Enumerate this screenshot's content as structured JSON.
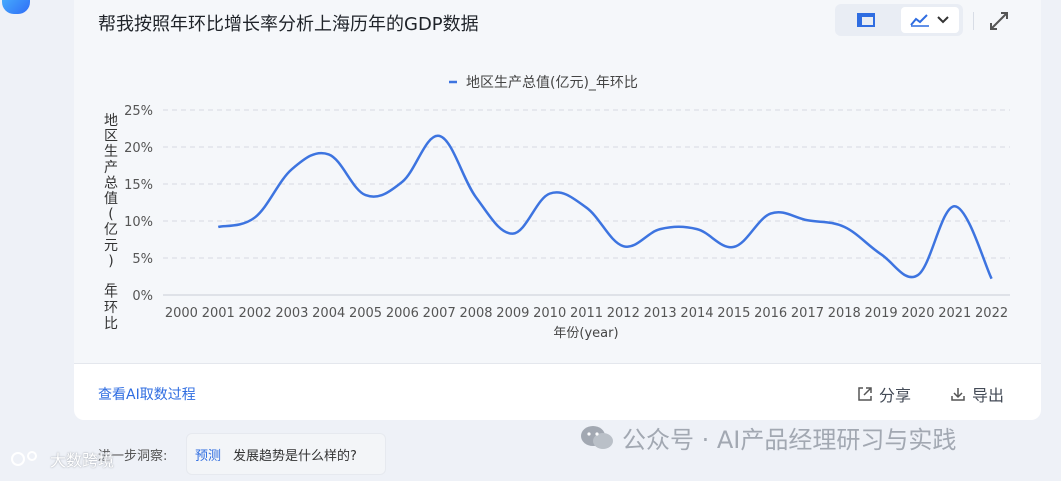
{
  "header": {
    "title": "帮我按照年环比增长率分析上海历年的GDP数据"
  },
  "toolbar": {
    "table_icon": "table-icon",
    "chart_icon": "line-chart-icon",
    "dropdown_icon": "chevron-down-icon",
    "expand_icon": "expand-icon"
  },
  "footer": {
    "process_link": "查看AI取数过程",
    "share_label": "分享",
    "export_label": "导出",
    "insight_label": "进一步洞察:",
    "chip_tag": "预测",
    "chip_text": "发展趋势是什么样的?"
  },
  "watermarks": {
    "left": "大数跨境",
    "right": "公众号 · AI产品经理研习与实践"
  },
  "colors": {
    "series": "#3d74e0",
    "accent": "#2f6de1"
  },
  "chart_data": {
    "type": "line",
    "legend_position": "top-center",
    "grid": true,
    "xlabel": "年份(year)",
    "ylabel": "地区生产总值(亿元)_年环比",
    "ylim": [
      0,
      25
    ],
    "yticks": [
      "0%",
      "5%",
      "10%",
      "15%",
      "20%",
      "25%"
    ],
    "categories": [
      "2000",
      "2001",
      "2002",
      "2003",
      "2004",
      "2005",
      "2006",
      "2007",
      "2008",
      "2009",
      "2010",
      "2011",
      "2012",
      "2013",
      "2014",
      "2015",
      "2016",
      "2017",
      "2018",
      "2019",
      "2020",
      "2021",
      "2022"
    ],
    "series": [
      {
        "name": "地区生产总值(亿元)_年环比",
        "values": [
          null,
          9.2,
          10.5,
          17.0,
          19.0,
          13.5,
          15.3,
          21.5,
          13.2,
          8.3,
          13.7,
          11.8,
          6.6,
          8.9,
          8.9,
          6.5,
          11.0,
          10.1,
          9.2,
          5.5,
          2.7,
          12.0,
          2.2
        ]
      }
    ]
  }
}
